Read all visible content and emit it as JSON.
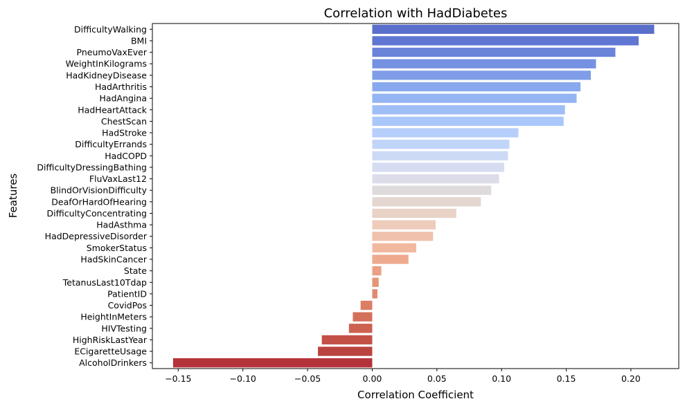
{
  "chart_data": {
    "type": "bar",
    "orientation": "horizontal",
    "title": "Correlation with HadDiabetes",
    "xlabel": "Correlation Coefficient",
    "ylabel": "Features",
    "xlim": [
      -0.17,
      0.237
    ],
    "xticks": [
      -0.15,
      -0.1,
      -0.05,
      0.0,
      0.05,
      0.1,
      0.15,
      0.2
    ],
    "xtick_labels": [
      "−0.15",
      "−0.10",
      "−0.05",
      "0.00",
      "0.05",
      "0.10",
      "0.15",
      "0.20"
    ],
    "grid": false,
    "legend": false,
    "palette": "coolwarm",
    "categories": [
      "DifficultyWalking",
      "BMI",
      "PneumoVaxEver",
      "WeightInKilograms",
      "HadKidneyDisease",
      "HadArthritis",
      "HadAngina",
      "HadHeartAttack",
      "ChestScan",
      "HadStroke",
      "DifficultyErrands",
      "HadCOPD",
      "DifficultyDressingBathing",
      "FluVaxLast12",
      "BlindOrVisionDifficulty",
      "DeafOrHardOfHearing",
      "DifficultyConcentrating",
      "HadAsthma",
      "HadDepressiveDisorder",
      "SmokerStatus",
      "HadSkinCancer",
      "State",
      "TetanusLast10Tdap",
      "PatientID",
      "CovidPos",
      "HeightInMeters",
      "HIVTesting",
      "HighRiskLastYear",
      "ECigaretteUsage",
      "AlcoholDrinkers"
    ],
    "values": [
      0.218,
      0.206,
      0.188,
      0.173,
      0.169,
      0.161,
      0.158,
      0.149,
      0.148,
      0.113,
      0.106,
      0.105,
      0.102,
      0.098,
      0.092,
      0.084,
      0.065,
      0.049,
      0.047,
      0.034,
      0.028,
      0.007,
      0.005,
      0.004,
      -0.009,
      -0.015,
      -0.018,
      -0.039,
      -0.042,
      -0.154
    ],
    "colors": [
      "#5a6fcb",
      "#5f76d2",
      "#6a84da",
      "#7591e1",
      "#7f9de8",
      "#89a9ee",
      "#94b4f3",
      "#9fbef6",
      "#aac7f9",
      "#b6cefa",
      "#c1d5f9",
      "#ccdaf6",
      "#d6dcf1",
      "#dcdde8",
      "#dfdbdd",
      "#e4d6d1",
      "#e9d3c6",
      "#eecbbb",
      "#f0c2ad",
      "#f1b8a0",
      "#eeaa8f",
      "#eb9f83",
      "#e69579",
      "#e18a6f",
      "#dc7e64",
      "#d4705a",
      "#cc6150",
      "#c35046",
      "#bb433f",
      "#b4333b"
    ]
  }
}
